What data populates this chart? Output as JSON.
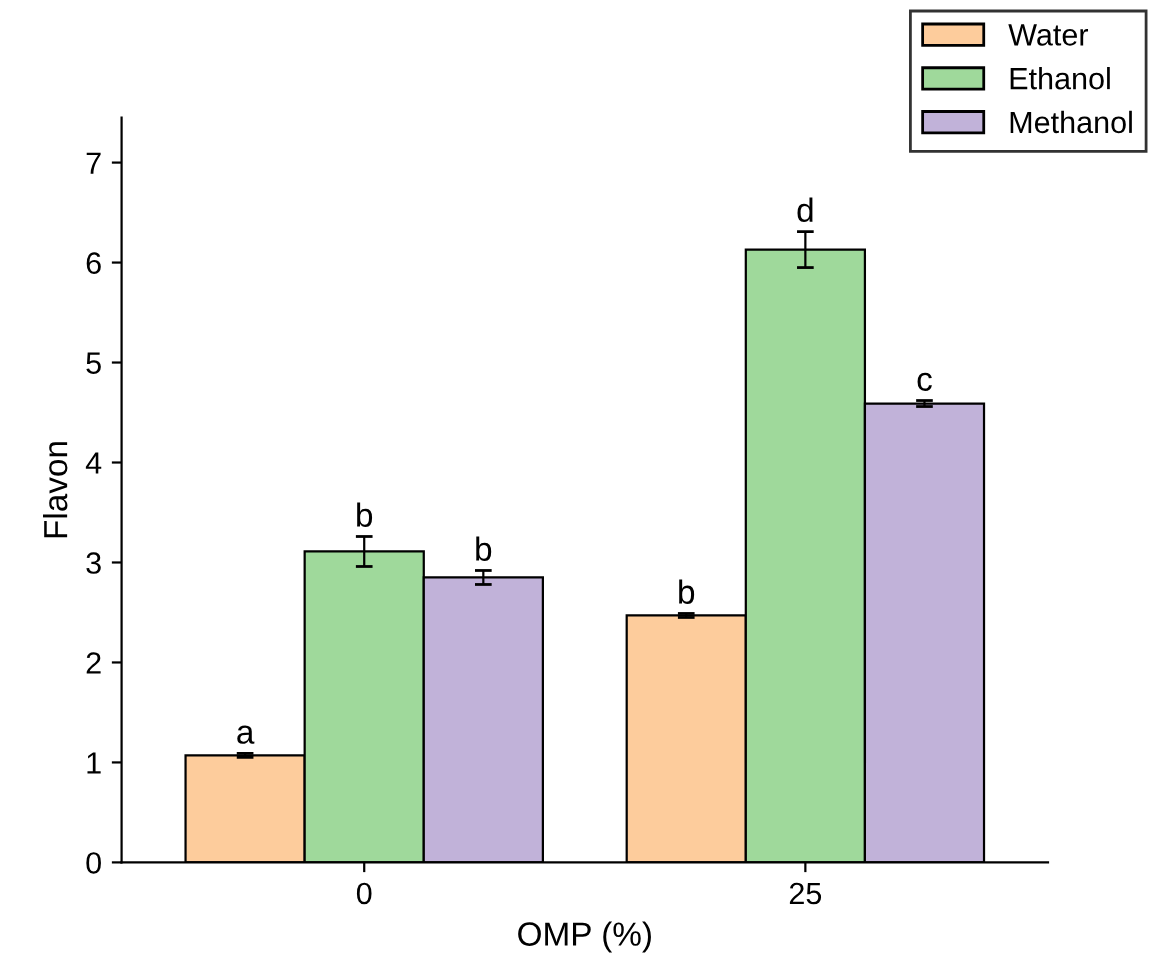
{
  "chart_data": {
    "type": "bar",
    "xlabel": "OMP (%)",
    "ylabel": "Flavon",
    "categories": [
      "0",
      "25"
    ],
    "series": [
      {
        "name": "Water",
        "color": "#fdcc9c",
        "values": [
          1.07,
          2.47
        ],
        "errors": [
          0.02,
          0.02
        ],
        "value_labels": [
          "a",
          "b"
        ]
      },
      {
        "name": "Ethanol",
        "color": "#9fd99b",
        "values": [
          3.11,
          6.13
        ],
        "errors": [
          0.15,
          0.18
        ],
        "value_labels": [
          "b",
          "d"
        ]
      },
      {
        "name": "Methanol",
        "color": "#c1b2d9",
        "values": [
          2.85,
          4.59
        ],
        "errors": [
          0.07,
          0.03
        ],
        "value_labels": [
          "b",
          "c"
        ]
      }
    ],
    "ylim": [
      0,
      7.45
    ],
    "yticks": [
      0,
      1,
      2,
      3,
      4,
      5,
      6,
      7
    ],
    "grid": false,
    "legend": "top right"
  }
}
